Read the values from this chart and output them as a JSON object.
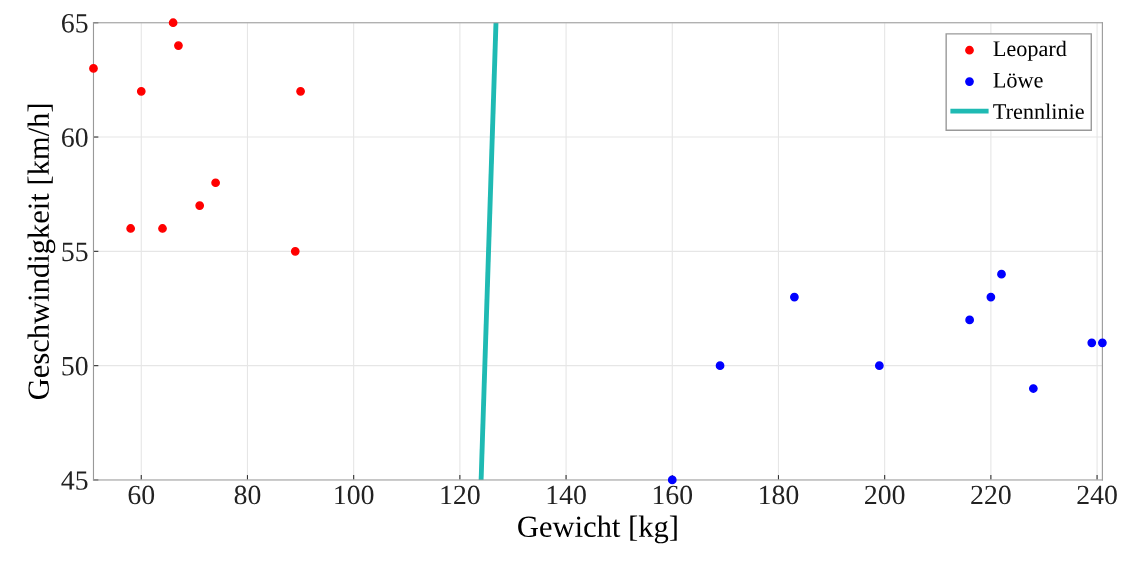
{
  "chart_data": {
    "type": "scatter",
    "xlabel": "Gewicht [kg]",
    "ylabel": "Geschwindigkeit [km/h]",
    "series": [
      {
        "name": "Leopard",
        "color": "#ff0000",
        "x": [
          51,
          66,
          67,
          60,
          90,
          74,
          71,
          58,
          64,
          89
        ],
        "values": [
          63,
          65,
          64,
          62,
          62,
          58,
          57,
          56,
          56,
          55
        ]
      },
      {
        "name": "Löwe",
        "color": "#0000ff",
        "x": [
          160,
          169,
          183,
          199,
          216,
          220,
          222,
          228,
          239,
          241
        ],
        "values": [
          45,
          50,
          53,
          50,
          52,
          53,
          54,
          49,
          51,
          51
        ]
      },
      {
        "name": "Trennlinie",
        "type": "line",
        "color": "#1fbab3",
        "marker": "none",
        "x": [
          124,
          126.8
        ],
        "values": [
          45,
          65
        ]
      }
    ],
    "xlim": [
      51,
      241
    ],
    "ylim": [
      45,
      65
    ],
    "xticks": [
      60,
      80,
      100,
      120,
      140,
      160,
      180,
      200,
      220,
      240
    ],
    "yticks": [
      45,
      50,
      55,
      60,
      65
    ],
    "grid": true,
    "legend": "top right",
    "marker": "circle"
  }
}
